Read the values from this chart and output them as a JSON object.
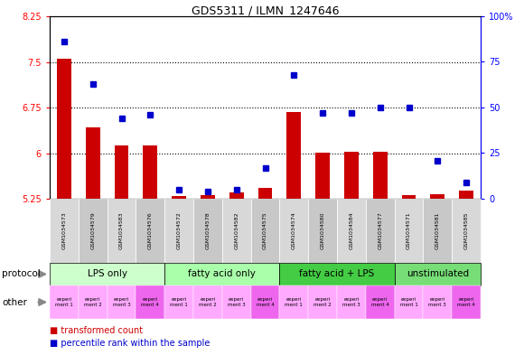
{
  "title": "GDS5311 / ILMN_1247646",
  "samples": [
    "GSM1034573",
    "GSM1034579",
    "GSM1034583",
    "GSM1034576",
    "GSM1034572",
    "GSM1034578",
    "GSM1034582",
    "GSM1034575",
    "GSM1034574",
    "GSM1034580",
    "GSM1034584",
    "GSM1034577",
    "GSM1034571",
    "GSM1034581",
    "GSM1034585"
  ],
  "bar_values": [
    7.55,
    6.42,
    6.12,
    6.13,
    5.3,
    5.31,
    5.36,
    5.43,
    6.67,
    6.01,
    6.02,
    6.02,
    5.31,
    5.33,
    5.38
  ],
  "dot_values": [
    86,
    63,
    44,
    46,
    5,
    4,
    5,
    17,
    68,
    47,
    47,
    50,
    50,
    21,
    9
  ],
  "bar_baseline": 5.25,
  "ylim_left": [
    5.25,
    8.25
  ],
  "ylim_right": [
    0,
    100
  ],
  "yticks_left": [
    5.25,
    6.0,
    6.75,
    7.5,
    8.25
  ],
  "yticks_right": [
    0,
    25,
    50,
    75,
    100
  ],
  "ytick_labels_left": [
    "5.25",
    "6",
    "6.75",
    "7.5",
    "8.25"
  ],
  "ytick_labels_right": [
    "0",
    "25",
    "50",
    "75",
    "100%"
  ],
  "hlines": [
    6.0,
    6.75,
    7.5
  ],
  "protocols": [
    {
      "label": "LPS only",
      "start": 0,
      "end": 4,
      "color": "#ccffcc"
    },
    {
      "label": "fatty acid only",
      "start": 4,
      "end": 8,
      "color": "#aaffaa"
    },
    {
      "label": "fatty acid + LPS",
      "start": 8,
      "end": 12,
      "color": "#44cc44"
    },
    {
      "label": "unstimulated",
      "start": 12,
      "end": 15,
      "color": "#77dd77"
    }
  ],
  "others": [
    {
      "label": "experi\nment 1",
      "idx": 0,
      "color": "#ffaaff"
    },
    {
      "label": "experi\nment 2",
      "idx": 1,
      "color": "#ffaaff"
    },
    {
      "label": "experi\nment 3",
      "idx": 2,
      "color": "#ffaaff"
    },
    {
      "label": "experi\nment 4",
      "idx": 3,
      "color": "#ee66ee"
    },
    {
      "label": "experi\nment 1",
      "idx": 4,
      "color": "#ffaaff"
    },
    {
      "label": "experi\nment 2",
      "idx": 5,
      "color": "#ffaaff"
    },
    {
      "label": "experi\nment 3",
      "idx": 6,
      "color": "#ffaaff"
    },
    {
      "label": "experi\nment 4",
      "idx": 7,
      "color": "#ee66ee"
    },
    {
      "label": "experi\nment 1",
      "idx": 8,
      "color": "#ffaaff"
    },
    {
      "label": "experi\nment 2",
      "idx": 9,
      "color": "#ffaaff"
    },
    {
      "label": "experi\nment 3",
      "idx": 10,
      "color": "#ffaaff"
    },
    {
      "label": "experi\nment 4",
      "idx": 11,
      "color": "#ee66ee"
    },
    {
      "label": "experi\nment 1",
      "idx": 12,
      "color": "#ffaaff"
    },
    {
      "label": "experi\nment 3",
      "idx": 13,
      "color": "#ffaaff"
    },
    {
      "label": "experi\nment 4",
      "idx": 14,
      "color": "#ee66ee"
    }
  ],
  "bar_color": "#cc0000",
  "dot_color": "#0000cc",
  "bg_color": "#ffffff",
  "sample_bg_even": "#d8d8d8",
  "sample_bg_odd": "#c8c8c8",
  "legend_red": "transformed count",
  "legend_blue": "percentile rank within the sample",
  "protocol_label": "protocol",
  "other_label": "other"
}
